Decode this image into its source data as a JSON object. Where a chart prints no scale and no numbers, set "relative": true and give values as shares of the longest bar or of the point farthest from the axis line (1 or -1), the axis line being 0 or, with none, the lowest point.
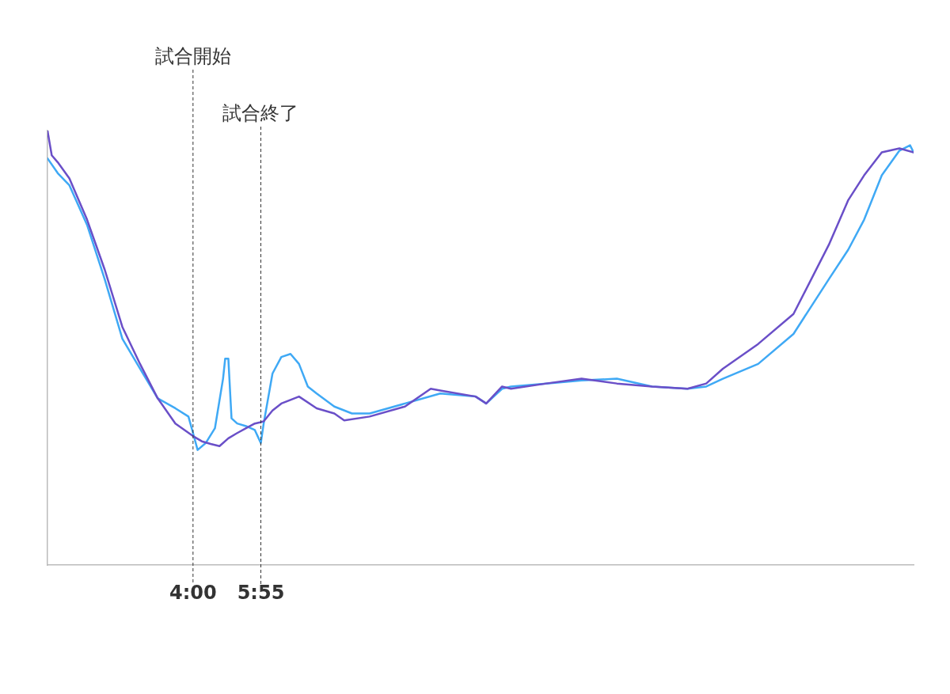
{
  "chart_data": {
    "type": "line",
    "relative": true,
    "tick_labels": "x",
    "marker": "none",
    "line_style": "solid",
    "legend": false,
    "xlim": [
      -0.12,
      24.4
    ],
    "xticks": [
      {
        "value": 4,
        "label": "4:00"
      },
      {
        "value": 5.92,
        "label": "5:55"
      }
    ],
    "ref_lines": [
      {
        "axis": "x",
        "value": 4,
        "label": "試合開始",
        "color": "#333333",
        "line_style": "dashed"
      },
      {
        "axis": "x",
        "value": 5.92,
        "label": "試合終了",
        "color": "#333333",
        "line_style": "dashed"
      }
    ],
    "series": [
      {
        "color": "#3fa9f5",
        "x": [
          -0.12,
          0.17,
          0.5,
          1,
          1.5,
          2,
          2.5,
          3,
          3.5,
          3.87,
          4,
          4.13,
          4.36,
          4.62,
          4.85,
          4.91,
          5,
          5.09,
          5.25,
          5.5,
          5.75,
          5.92,
          6,
          6.25,
          6.5,
          6.76,
          7,
          7.25,
          7.5,
          8,
          8.5,
          9,
          10,
          11,
          12,
          12.3,
          12.75,
          13,
          14,
          15,
          16,
          17,
          18,
          18.53,
          19,
          20,
          21,
          22,
          22.55,
          23,
          23.5,
          24,
          24.3,
          24.4
        ],
        "values": [
          0.936,
          0.902,
          0.874,
          0.783,
          0.658,
          0.521,
          0.452,
          0.384,
          0.361,
          0.342,
          0.304,
          0.265,
          0.281,
          0.315,
          0.429,
          0.475,
          0.475,
          0.338,
          0.326,
          0.32,
          0.311,
          0.281,
          0.326,
          0.441,
          0.479,
          0.486,
          0.463,
          0.411,
          0.395,
          0.365,
          0.349,
          0.349,
          0.372,
          0.395,
          0.388,
          0.372,
          0.406,
          0.411,
          0.418,
          0.425,
          0.429,
          0.411,
          0.406,
          0.411,
          0.429,
          0.463,
          0.532,
          0.658,
          0.726,
          0.795,
          0.897,
          0.954,
          0.966,
          0.95
        ]
      },
      {
        "color": "#6a4fc8",
        "x": [
          -0.12,
          0,
          0.17,
          0.5,
          1,
          1.5,
          2,
          2.5,
          3,
          3.5,
          4,
          4.25,
          4.5,
          4.75,
          5,
          5.25,
          5.5,
          5.75,
          5.92,
          6,
          6.25,
          6.5,
          7,
          7.5,
          8,
          8.28,
          9,
          10,
          10.73,
          11,
          12,
          12.3,
          12.75,
          13,
          14,
          15,
          16,
          17,
          18,
          18.53,
          19,
          20,
          21,
          22,
          22.55,
          23,
          23.5,
          24,
          24.4
        ],
        "values": [
          1.0,
          0.943,
          0.927,
          0.89,
          0.795,
          0.68,
          0.548,
          0.463,
          0.384,
          0.326,
          0.297,
          0.285,
          0.279,
          0.274,
          0.292,
          0.304,
          0.315,
          0.326,
          0.329,
          0.331,
          0.356,
          0.372,
          0.388,
          0.361,
          0.349,
          0.333,
          0.342,
          0.365,
          0.406,
          0.402,
          0.388,
          0.372,
          0.411,
          0.406,
          0.418,
          0.429,
          0.418,
          0.411,
          0.406,
          0.418,
          0.452,
          0.509,
          0.578,
          0.737,
          0.84,
          0.897,
          0.95,
          0.959,
          0.95
        ]
      }
    ]
  }
}
